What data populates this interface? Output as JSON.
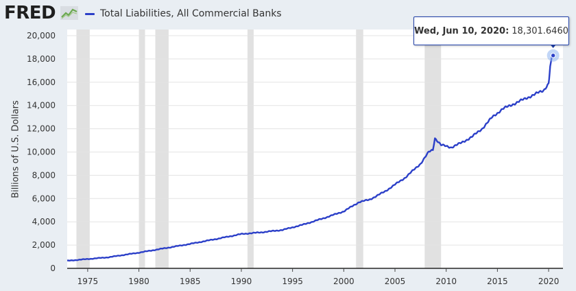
{
  "header": {
    "logo_text": "FRED",
    "logo_icon": "fred-chart-logo-icon",
    "legend_label": "Total Liabilities, All Commercial Banks"
  },
  "colors": {
    "series": "#2b3fc8",
    "recession": "#e1e1e1",
    "grid": "#e3e3e3",
    "page_background": "#e9eef3",
    "plot_background": "#ffffff"
  },
  "tooltip": {
    "date": "Wed, Jun 10, 2020:",
    "value": "18,301.6460"
  },
  "chart_data": {
    "type": "line",
    "title": "",
    "xlabel": "",
    "ylabel": "Billions of U.S. Dollars",
    "xlim": [
      1973,
      2021.4
    ],
    "ylim": [
      0,
      20000
    ],
    "x_ticks": [
      1975,
      1980,
      1985,
      1990,
      1995,
      2000,
      2005,
      2010,
      2015,
      2020
    ],
    "y_ticks": [
      0,
      2000,
      4000,
      6000,
      8000,
      10000,
      12000,
      14000,
      16000,
      18000,
      20000
    ],
    "y_tick_labels": [
      "0",
      "2,000",
      "4,000",
      "6,000",
      "8,000",
      "10,000",
      "12,000",
      "14,000",
      "16,000",
      "18,000",
      "20,000"
    ],
    "grid": true,
    "legend": "top-left",
    "recessions": [
      [
        1973.9,
        1975.2
      ],
      [
        1980.0,
        1980.6
      ],
      [
        1981.6,
        1982.9
      ],
      [
        1990.6,
        1991.2
      ],
      [
        2001.2,
        2001.9
      ],
      [
        2007.9,
        2009.5
      ]
    ],
    "series": [
      {
        "name": "Total Liabilities, All Commercial Banks",
        "x": [
          1973.0,
          1975.0,
          1977.0,
          1980.0,
          1982.0,
          1985.0,
          1988.0,
          1990.0,
          1992.0,
          1994.0,
          1996.0,
          1998.0,
          2000.0,
          2001.5,
          2002.5,
          2004.0,
          2006.0,
          2007.5,
          2008.3,
          2008.7,
          2008.9,
          2009.5,
          2010.5,
          2011.5,
          2012.5,
          2013.5,
          2014.5,
          2015.5,
          2016.5,
          2017.5,
          2018.5,
          2019.5,
          2020.0,
          2020.05,
          2020.15,
          2020.3,
          2020.44
        ],
        "y": [
          650,
          800,
          950,
          1350,
          1650,
          2100,
          2600,
          2950,
          3100,
          3300,
          3750,
          4300,
          4900,
          5700,
          5900,
          6600,
          7800,
          9000,
          10000,
          10200,
          11200,
          10600,
          10400,
          10800,
          11300,
          12000,
          13000,
          13700,
          14100,
          14500,
          14900,
          15300,
          15900,
          16300,
          17400,
          18000,
          18301.646
        ]
      }
    ],
    "highlight_point": {
      "x": 2020.44,
      "y": 18301.646,
      "label": "Wed, Jun 10, 2020: 18,301.6460"
    }
  }
}
